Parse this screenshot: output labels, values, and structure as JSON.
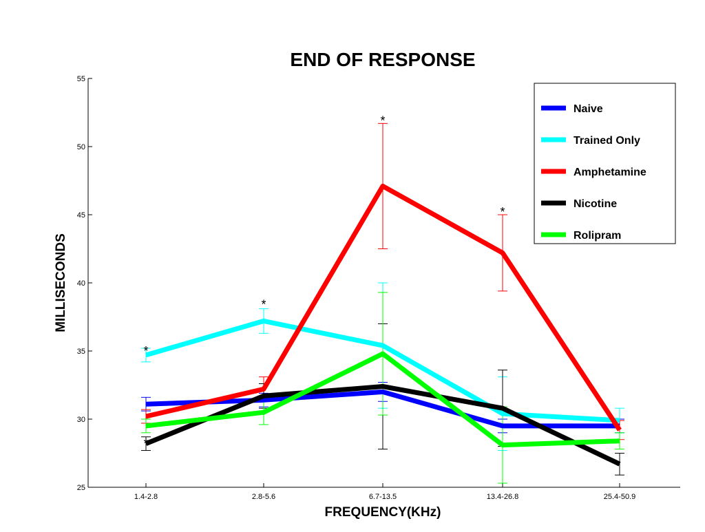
{
  "chart_data": {
    "type": "line",
    "title": "END OF RESPONSE",
    "xlabel": "FREQUENCY(KHz)",
    "ylabel": "MILLISECONDS",
    "categories": [
      "1.4-2.8",
      "2.8-5.6",
      "6.7-13.5",
      "13.4-26.8",
      "25.4-50.9"
    ],
    "ylim": [
      25,
      55
    ],
    "yticks": [
      25,
      30,
      35,
      40,
      45,
      50,
      55
    ],
    "legend_position": "top-right",
    "grid": false,
    "series": [
      {
        "name": "Naive",
        "color": "#0000ff",
        "values": [
          31.1,
          31.4,
          32.0,
          29.5,
          29.5
        ],
        "error": [
          0.5,
          0.5,
          0.7,
          0.5,
          0.5
        ]
      },
      {
        "name": "Trained Only",
        "color": "#00ffff",
        "values": [
          34.7,
          37.2,
          35.4,
          30.4,
          29.9
        ],
        "error": [
          0.5,
          0.9,
          4.6,
          2.7,
          0.9
        ]
      },
      {
        "name": "Amphetamine",
        "color": "#ff0000",
        "values": [
          30.2,
          32.2,
          47.1,
          42.2,
          29.2
        ],
        "error": [
          0.5,
          0.9,
          4.6,
          2.8,
          0.7
        ]
      },
      {
        "name": "Nicotine",
        "color": "#000000",
        "values": [
          28.2,
          31.7,
          32.4,
          30.8,
          26.7
        ],
        "error": [
          0.5,
          0.9,
          4.6,
          2.8,
          0.8
        ]
      },
      {
        "name": "Rolipram",
        "color": "#00ff00",
        "values": [
          29.5,
          30.5,
          34.8,
          28.1,
          28.4
        ],
        "error": [
          0.5,
          0.9,
          4.5,
          2.8,
          0.6
        ]
      }
    ],
    "annotations": [
      {
        "text": "*",
        "category": "1.4-2.8",
        "y": 35.2
      },
      {
        "text": "*",
        "category": "1.4-2.8",
        "y": 28.4
      },
      {
        "text": "*",
        "category": "2.8-5.6",
        "y": 38.6
      },
      {
        "text": "*",
        "category": "6.7-13.5",
        "y": 52.1
      },
      {
        "text": "*",
        "category": "13.4-26.8",
        "y": 45.4
      }
    ]
  }
}
